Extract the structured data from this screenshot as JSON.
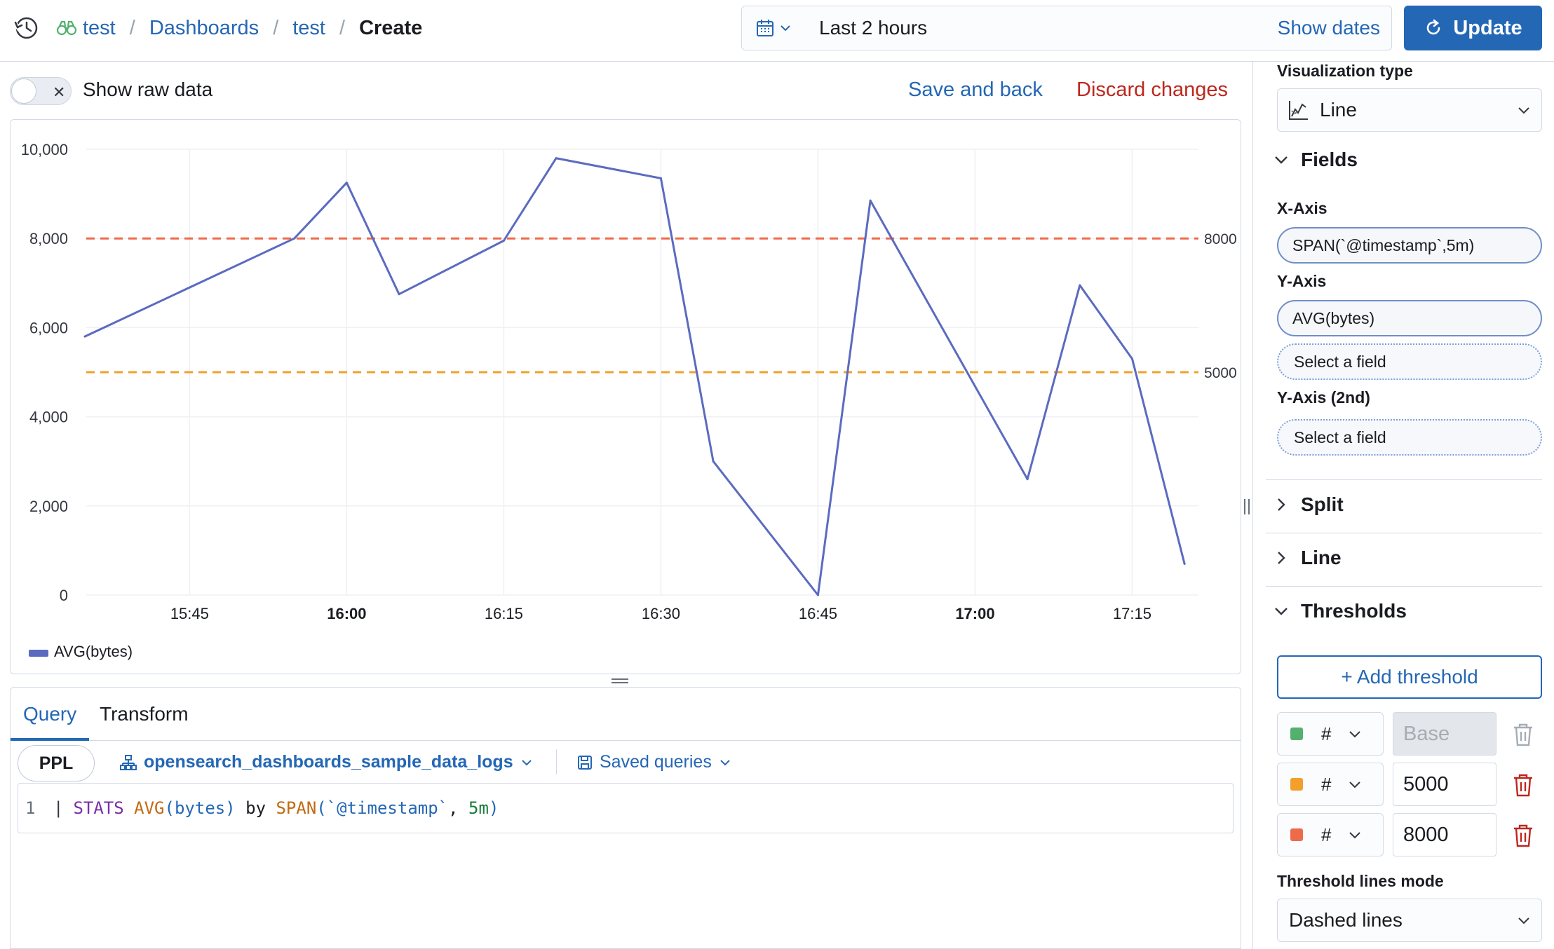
{
  "breadcrumb": {
    "items": [
      "test",
      "Dashboards",
      "test"
    ],
    "current": "Create"
  },
  "timepicker": {
    "range_label": "Last 2 hours",
    "show_dates": "Show dates",
    "update": "Update"
  },
  "toolbar": {
    "show_raw_data": "Show raw data",
    "show_raw_data_enabled": false,
    "save_and_back": "Save and back",
    "discard_changes": "Discard changes"
  },
  "chart_data": {
    "type": "line",
    "x": [
      "15:35",
      "15:40",
      "15:45",
      "15:50",
      "15:55",
      "16:00",
      "16:05",
      "16:10",
      "16:15",
      "16:20",
      "16:25",
      "16:30",
      "16:35",
      "16:40",
      "16:45",
      "16:50",
      "16:55",
      "17:00",
      "17:05",
      "17:10",
      "17:15",
      "17:20"
    ],
    "x_ticks": [
      "15:45",
      "16:00",
      "16:15",
      "16:30",
      "16:45",
      "17:00",
      "17:15"
    ],
    "x_ticks_bold": [
      "16:00",
      "17:00"
    ],
    "series": [
      {
        "name": "AVG(bytes)",
        "color": "#5b6bc0",
        "values": [
          5800,
          null,
          null,
          null,
          8000,
          9250,
          6750,
          null,
          7950,
          9800,
          null,
          9350,
          3000,
          null,
          0,
          8850,
          null,
          null,
          2600,
          6950,
          5300,
          700
        ]
      }
    ],
    "ylim": [
      0,
      10000
    ],
    "y_ticks": [
      "0",
      "2,000",
      "4,000",
      "6,000",
      "8,000",
      "10,000"
    ],
    "thresholds": [
      {
        "value": 5000,
        "label": "5000",
        "color": "#f2a02b"
      },
      {
        "value": 8000,
        "label": "8000",
        "color": "#ee6b4a"
      }
    ],
    "grid": true,
    "legend": "bottom-left"
  },
  "query": {
    "tabs": [
      "Query",
      "Transform"
    ],
    "active_tab": "Query",
    "language": "PPL",
    "datasource": "opensearch_dashboards_sample_data_logs",
    "saved_queries": "Saved queries",
    "line_number": "1",
    "tokens": {
      "pipe": "|",
      "stats": "STATS",
      "avg": "AVG",
      "open1": "(",
      "field1": "bytes",
      "close1": ")",
      "by": "by",
      "span": "SPAN",
      "open2": "(",
      "field2": "`@timestamp`",
      "comma": ",",
      "interval": "5m",
      "close2": ")"
    }
  },
  "panel": {
    "visualization_type_label": "Visualization type",
    "visualization_type": "Line",
    "fields_section": "Fields",
    "x_axis_label": "X-Axis",
    "x_axis_value": "SPAN(`@timestamp`,5m)",
    "y_axis_label": "Y-Axis",
    "y_axis_value": "AVG(bytes)",
    "y_axis_placeholder": "Select a field",
    "y_axis2_label": "Y-Axis (2nd)",
    "y_axis2_placeholder": "Select a field",
    "split_section": "Split",
    "line_section": "Line",
    "thresholds_section": "Thresholds",
    "add_threshold": "+ Add threshold",
    "thresholds": [
      {
        "color": "#54b06e",
        "hash": "#",
        "value": "Base",
        "disabled": true
      },
      {
        "color": "#f2a02b",
        "hash": "#",
        "value": "5000",
        "disabled": false
      },
      {
        "color": "#ee6b4a",
        "hash": "#",
        "value": "8000",
        "disabled": false
      }
    ],
    "threshold_mode_label": "Threshold lines mode",
    "threshold_mode": "Dashed lines"
  }
}
